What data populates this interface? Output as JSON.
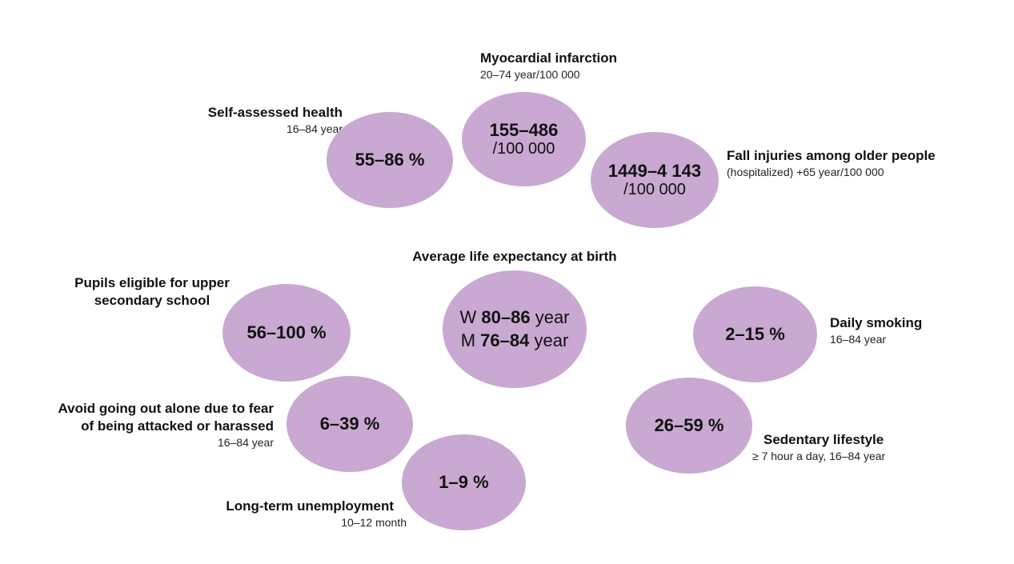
{
  "indicators": {
    "self_health": {
      "title": "Self-assessed health",
      "subtitle": "16–84 year",
      "value": "55–86 %"
    },
    "myocardial": {
      "title": "Myocardial infarction",
      "subtitle": "20–74 year/100 000",
      "value": "155–486",
      "unit": "/100 000"
    },
    "fall": {
      "title": "Fall injuries among older people",
      "subtitle": "(hospitalized) +65 year/100 000",
      "value": "1449–4 143",
      "unit": "/100 000"
    },
    "life": {
      "title": "Average life expectancy at birth",
      "w_prefix": "W",
      "w_value": "80–86",
      "w_unit": "year",
      "m_prefix": "M",
      "m_value": "76–84",
      "m_unit": "year"
    },
    "pupils": {
      "title_line1": "Pupils eligible for upper",
      "title_line2": "secondary school",
      "value": "56–100 %"
    },
    "smoking": {
      "title": "Daily smoking",
      "subtitle": "16–84 year",
      "value": "2–15 %"
    },
    "fear": {
      "title_line1": "Avoid going out alone due to fear",
      "title_line2": "of being attacked or harassed",
      "subtitle": "16–84 year",
      "value": "6–39 %"
    },
    "sedentary": {
      "title": "Sedentary lifestyle",
      "subtitle": "≥ 7 hour a day, 16–84 year",
      "value": "26–59 %"
    },
    "unemployment": {
      "title": "Long-term unemployment",
      "subtitle": "10–12 month",
      "value": "1–9 %"
    }
  },
  "colors": {
    "bubble": "#c9a8d2",
    "text": "#111111"
  }
}
